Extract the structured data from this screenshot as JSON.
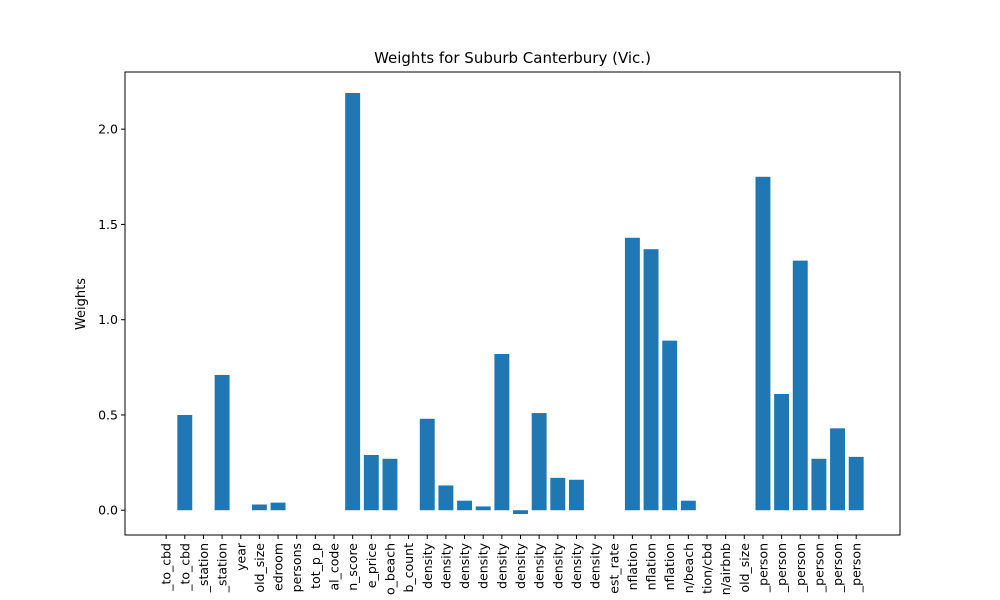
{
  "chart_data": {
    "type": "bar",
    "title": "Weights for Suburb Canterbury (Vic.)",
    "xlabel": "",
    "ylabel": "Weights",
    "ylim": [
      -0.13,
      2.3
    ],
    "yticks": [
      0.0,
      0.5,
      1.0,
      1.5,
      2.0
    ],
    "ytick_labels": [
      "0.0",
      "0.5",
      "1.0",
      "1.5",
      "2.0"
    ],
    "grid": false,
    "bar_color": "#1f77b4",
    "categories": [
      "_to_cbd",
      "_to_cbd",
      "_station",
      "_station",
      "year",
      "old_size",
      "edroom",
      "persons",
      "tot_p_p",
      "al_code",
      "n_score",
      "e_price",
      "o_beach",
      "b_count",
      "density",
      "density",
      "density",
      "density",
      "density",
      "density",
      "density",
      "density",
      "density",
      "density",
      "est_rate",
      "nflation",
      "nflation",
      "nflation",
      "n/beach",
      "tion/cbd",
      "n/airbnb",
      "old_size",
      "_person",
      "_person",
      "_person",
      "_person",
      "_person",
      "_person"
    ],
    "values": [
      0,
      0.5,
      0,
      0.71,
      0,
      0.03,
      0.04,
      0,
      0,
      0,
      2.19,
      0.29,
      0.27,
      0,
      0.48,
      0.13,
      0.05,
      0.02,
      0.82,
      -0.02,
      0.51,
      0.17,
      0.16,
      0,
      0,
      1.43,
      1.37,
      0.89,
      0.05,
      0,
      0,
      0,
      1.75,
      0.61,
      1.31,
      0.27,
      0.43,
      0.28
    ]
  }
}
